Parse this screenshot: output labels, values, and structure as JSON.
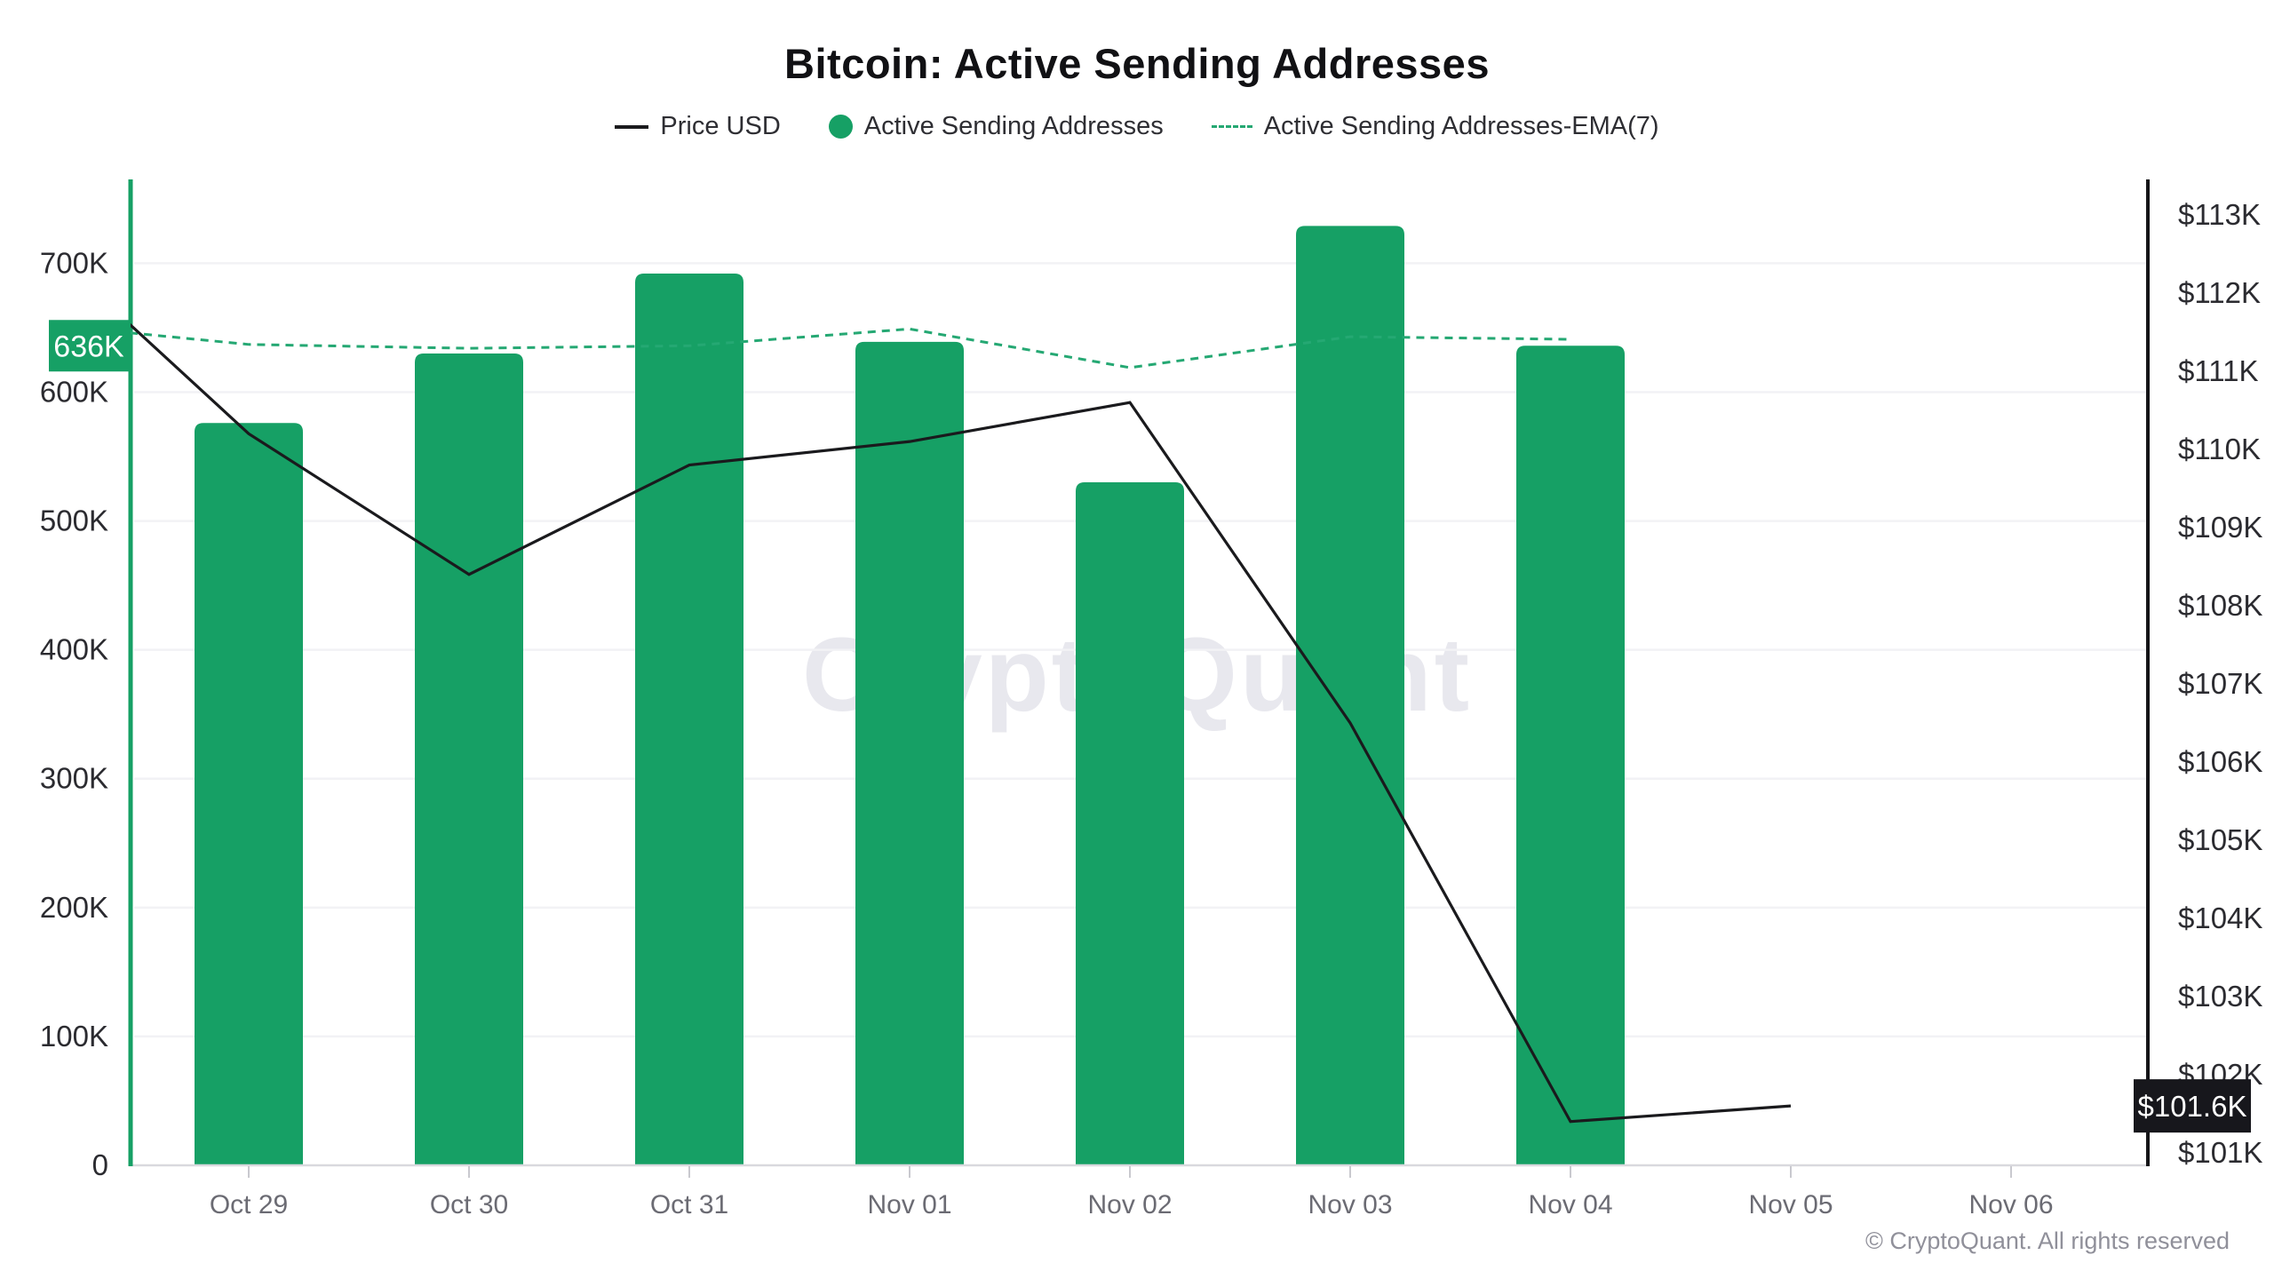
{
  "header": {
    "title": "Bitcoin: Active Sending Addresses",
    "legend": [
      {
        "label": "Price USD",
        "swatch": "line",
        "color": "#1a1a1d"
      },
      {
        "label": "Active Sending Addresses",
        "swatch": "circle",
        "color": "#16a065"
      },
      {
        "label": "Active Sending Addresses-EMA(7)",
        "swatch": "dashed",
        "color": "#25a873"
      }
    ]
  },
  "chart_data": {
    "type": "bar",
    "title": "Bitcoin: Active Sending Addresses",
    "categories": [
      "Oct 29",
      "Oct 30",
      "Oct 31",
      "Nov 01",
      "Nov 02",
      "Nov 03",
      "Nov 04",
      "Nov 05",
      "Nov 06"
    ],
    "series": [
      {
        "name": "Active Sending Addresses",
        "type": "bar",
        "axis": "left",
        "color": "#16a065",
        "values": [
          576000,
          630000,
          692000,
          639000,
          530000,
          729000,
          636000,
          null,
          null
        ]
      },
      {
        "name": "Price USD",
        "type": "line",
        "axis": "right",
        "color": "#1a1a1d",
        "x": [
          -0.54,
          0,
          1,
          2,
          3,
          4,
          5,
          6,
          7
        ],
        "values": [
          111600,
          110200,
          108400,
          109800,
          110100,
          110600,
          106500,
          101400,
          101600
        ]
      },
      {
        "name": "Active Sending Addresses-EMA(7)",
        "type": "dashed-line",
        "axis": "left",
        "color": "#25a873",
        "x": [
          -0.54,
          0,
          1,
          2,
          3,
          4,
          5,
          6
        ],
        "values": [
          646000,
          637000,
          634000,
          636000,
          649000,
          619000,
          643000,
          641000
        ]
      }
    ],
    "axis_left": {
      "min": 0,
      "max": 763000,
      "ticks": [
        {
          "value": 0,
          "label": "0"
        },
        {
          "value": 100000,
          "label": "100K"
        },
        {
          "value": 200000,
          "label": "200K"
        },
        {
          "value": 300000,
          "label": "300K"
        },
        {
          "value": 400000,
          "label": "400K"
        },
        {
          "value": 500000,
          "label": "500K"
        },
        {
          "value": 600000,
          "label": "600K"
        },
        {
          "value": 700000,
          "label": "700K"
        }
      ]
    },
    "axis_right": {
      "min": 100840,
      "max": 113420,
      "ticks": [
        {
          "value": 101000,
          "label": "$101K"
        },
        {
          "value": 102000,
          "label": "$102K"
        },
        {
          "value": 103000,
          "label": "$103K"
        },
        {
          "value": 104000,
          "label": "$104K"
        },
        {
          "value": 105000,
          "label": "$105K"
        },
        {
          "value": 106000,
          "label": "$106K"
        },
        {
          "value": 107000,
          "label": "$107K"
        },
        {
          "value": 108000,
          "label": "$108K"
        },
        {
          "value": 109000,
          "label": "$109K"
        },
        {
          "value": 110000,
          "label": "$110K"
        },
        {
          "value": 111000,
          "label": "$111K"
        },
        {
          "value": 112000,
          "label": "$112K"
        },
        {
          "value": 113000,
          "label": "$113K"
        }
      ]
    },
    "badges": {
      "left": {
        "label": "636K",
        "value": 636000,
        "bg": "#16a065",
        "text_color": "#ffffff"
      },
      "right": {
        "label": "$101.6K",
        "value": 101600,
        "bg": "#17171c",
        "text_color": "#ffffff"
      }
    },
    "watermark": "CryptoQuant",
    "grid": true,
    "legend_position": "top"
  },
  "footer": {
    "copyright": "© CryptoQuant. All rights reserved"
  },
  "colors": {
    "background": "#ffffff",
    "grid": "#f2f2f5",
    "baseline": "#d9d9de",
    "tick_mark": "#c9c9cf",
    "axis_left_line": "#16a065",
    "axis_right_line": "#141417",
    "label_left": "#2b2b30",
    "label_right": "#2b2b30",
    "label_x": "#6b6b73",
    "watermark": "#e8e8ee",
    "copyright": "#90909a"
  }
}
